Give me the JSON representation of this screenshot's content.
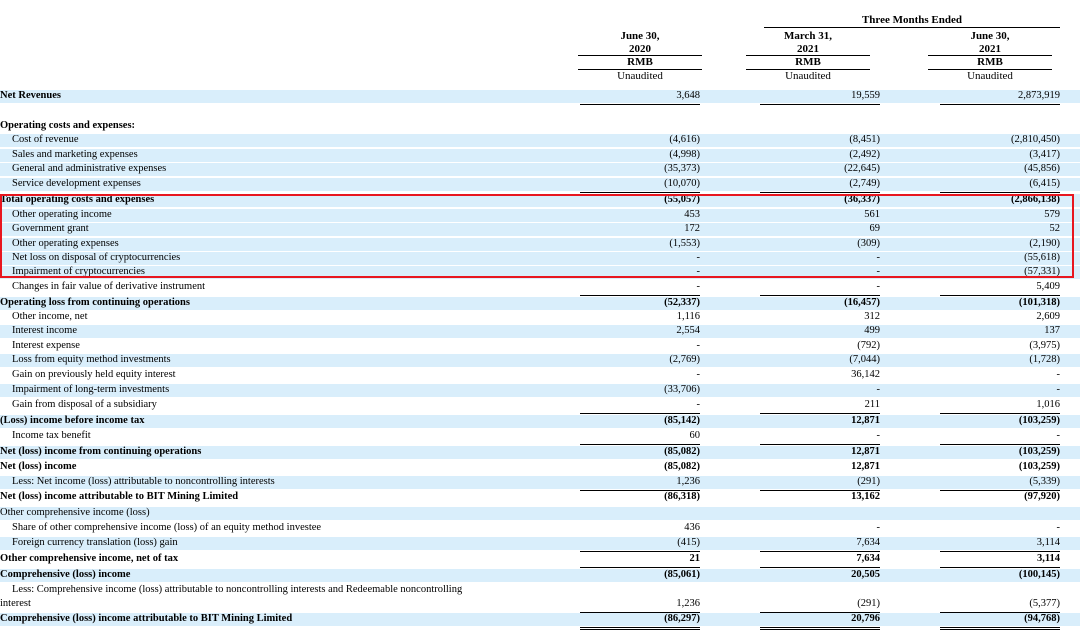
{
  "header": {
    "three_months_ended": "Three Months Ended",
    "columns": [
      {
        "date_line1": "June 30,",
        "date_line2": "2020",
        "currency": "RMB",
        "status": "Unaudited"
      },
      {
        "date_line1": "March 31,",
        "date_line2": "2021",
        "currency": "RMB",
        "status": "Unaudited"
      },
      {
        "date_line1": "June 30,",
        "date_line2": "2021",
        "currency": "RMB",
        "status": "Unaudited"
      }
    ]
  },
  "rows": [
    {
      "label": "Net Revenues",
      "values": [
        "3,648",
        "19,559",
        "2,873,919"
      ]
    },
    {
      "label": "Operating costs and expenses:",
      "values": [
        "",
        "",
        ""
      ]
    },
    {
      "label": "Cost of revenue",
      "values": [
        "(4,616)",
        "(8,451)",
        "(2,810,450)"
      ]
    },
    {
      "label": "Sales and marketing expenses",
      "values": [
        "(4,998)",
        "(2,492)",
        "(3,417)"
      ]
    },
    {
      "label": "General and administrative expenses",
      "values": [
        "(35,373)",
        "(22,645)",
        "(45,856)"
      ]
    },
    {
      "label": "Service development expenses",
      "values": [
        "(10,070)",
        "(2,749)",
        "(6,415)"
      ]
    },
    {
      "label": "Total operating costs and expenses",
      "values": [
        "(55,057)",
        "(36,337)",
        "(2,866,138)"
      ]
    },
    {
      "label": "Other operating income",
      "values": [
        "453",
        "561",
        "579"
      ]
    },
    {
      "label": "Government grant",
      "values": [
        "172",
        "69",
        "52"
      ]
    },
    {
      "label": "Other operating expenses",
      "values": [
        "(1,553)",
        "(309)",
        "(2,190)"
      ]
    },
    {
      "label": "Net loss on disposal of cryptocurrencies",
      "values": [
        "-",
        "-",
        "(55,618)"
      ]
    },
    {
      "label": "Impairment of cryptocurrencies",
      "values": [
        "-",
        "-",
        "(57,331)"
      ]
    },
    {
      "label": "Changes in fair value of derivative instrument",
      "values": [
        "-",
        "-",
        "5,409"
      ]
    },
    {
      "label": "Operating loss from continuing operations",
      "values": [
        "(52,337)",
        "(16,457)",
        "(101,318)"
      ]
    },
    {
      "label": "Other income, net",
      "values": [
        "1,116",
        "312",
        "2,609"
      ]
    },
    {
      "label": "Interest income",
      "values": [
        "2,554",
        "499",
        "137"
      ]
    },
    {
      "label": "Interest expense",
      "values": [
        "-",
        "(792)",
        "(3,975)"
      ]
    },
    {
      "label": "Loss from equity method investments",
      "values": [
        "(2,769)",
        "(7,044)",
        "(1,728)"
      ]
    },
    {
      "label": "Gain on previously held equity interest",
      "values": [
        "-",
        "36,142",
        "-"
      ]
    },
    {
      "label": "Impairment of long-term investments",
      "values": [
        "(33,706)",
        "-",
        "-"
      ]
    },
    {
      "label": "Gain from disposal of a subsidiary",
      "values": [
        "-",
        "211",
        "1,016"
      ]
    },
    {
      "label": "(Loss) income before income tax",
      "values": [
        "(85,142)",
        "12,871",
        "(103,259)"
      ]
    },
    {
      "label": "Income tax benefit",
      "values": [
        "60",
        "-",
        "-"
      ]
    },
    {
      "label": "Net (loss) income from continuing operations",
      "values": [
        "(85,082)",
        "12,871",
        "(103,259)"
      ]
    },
    {
      "label": "Net (loss) income",
      "values": [
        "(85,082)",
        "12,871",
        "(103,259)"
      ]
    },
    {
      "label": "Less: Net income (loss) attributable to noncontrolling interests",
      "values": [
        "1,236",
        "(291)",
        "(5,339)"
      ]
    },
    {
      "label": "Net (loss) income attributable to BIT Mining Limited",
      "values": [
        "(86,318)",
        "13,162",
        "(97,920)"
      ]
    },
    {
      "label": "Other comprehensive income (loss)",
      "values": [
        "",
        "",
        ""
      ]
    },
    {
      "label": "Share of other comprehensive income (loss) of an equity method investee",
      "values": [
        "436",
        "-",
        "-"
      ]
    },
    {
      "label": "Foreign currency translation (loss) gain",
      "values": [
        "(415)",
        "7,634",
        "3,114"
      ]
    },
    {
      "label": "Other comprehensive income, net of tax",
      "values": [
        "21",
        "7,634",
        "3,114"
      ]
    },
    {
      "label": "Comprehensive (loss) income",
      "values": [
        "(85,061)",
        "20,505",
        "(100,145)"
      ]
    },
    {
      "label": "Less: Comprehensive income (loss) attributable to noncontrolling interests and Redeemable noncontrolling",
      "values": [
        "",
        "",
        ""
      ]
    },
    {
      "label": "interest",
      "values": [
        "1,236",
        "(291)",
        "(5,377)"
      ]
    },
    {
      "label": "Comprehensive (loss) income attributable to BIT Mining Limited",
      "values": [
        "(86,297)",
        "20,796",
        "(94,768)"
      ]
    }
  ]
}
